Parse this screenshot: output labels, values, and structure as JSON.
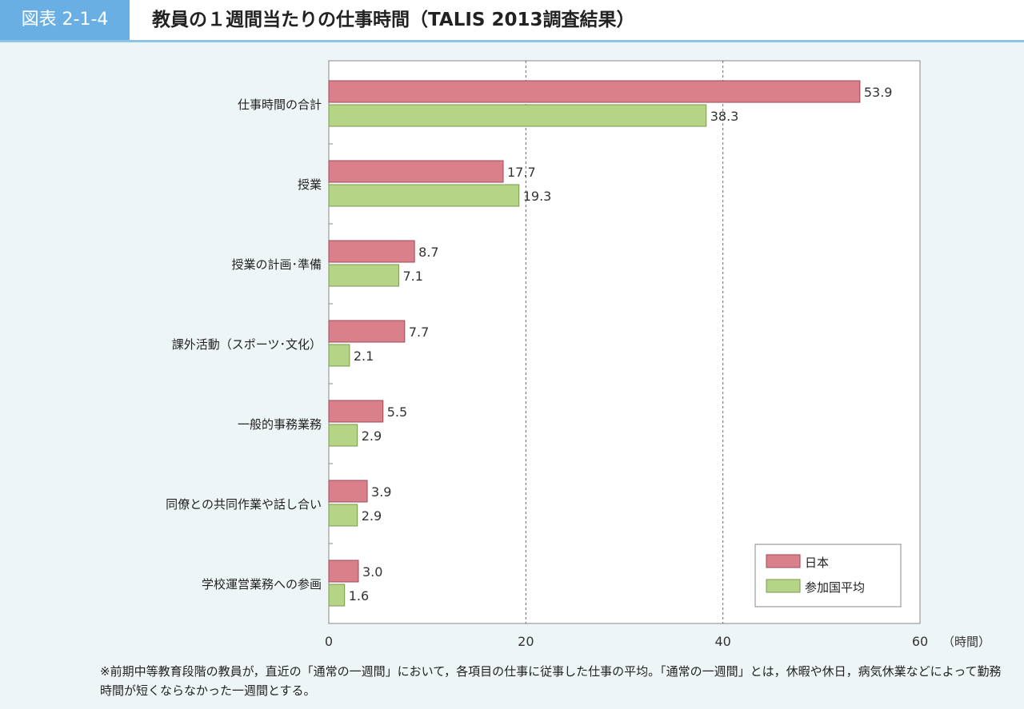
{
  "header": {
    "figure_number": "図表 2-1-4",
    "title": "教員の１週間当たりの仕事時間（TALIS 2013調査結果）"
  },
  "chart_data": {
    "type": "bar",
    "orientation": "horizontal",
    "title": "教員の１週間当たりの仕事時間（TALIS 2013調査結果）",
    "categories": [
      "仕事時間の合計",
      "授業",
      "授業の計画･準備",
      "課外活動（スポーツ･文化）",
      "一般的事務業務",
      "同僚との共同作業や話し合い",
      "学校運営業務への参画"
    ],
    "series": [
      {
        "name": "日本",
        "color": "#d9808b",
        "values": [
          53.9,
          17.7,
          8.7,
          7.7,
          5.5,
          3.9,
          3.0
        ]
      },
      {
        "name": "参加国平均",
        "color": "#b6d486",
        "values": [
          38.3,
          19.3,
          7.1,
          2.1,
          2.9,
          2.9,
          1.6
        ]
      }
    ],
    "xlim": [
      0,
      60
    ],
    "xticks": [
      "0",
      "20",
      "40",
      "60"
    ],
    "xlabel": "（時間）",
    "grid": "vertical dashed at 20, 40",
    "legend": "bottom-right"
  },
  "note": "※前期中等教育段階の教員が，直近の「通常の一週間」において，各項目の仕事に従事した仕事の平均。「通常の一週間」とは，休暇や休日，病気休業などによって勤務時間が短くならなかった一週間とする。"
}
